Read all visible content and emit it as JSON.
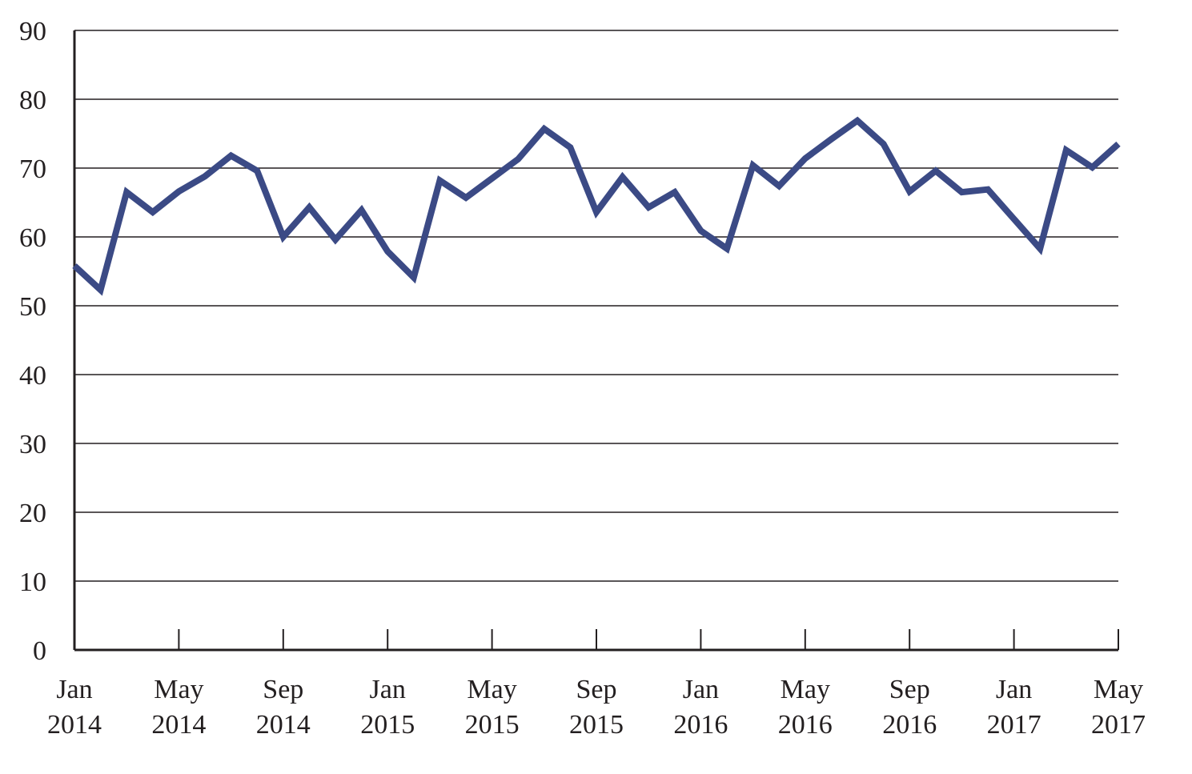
{
  "chart_data": {
    "type": "line",
    "title": "",
    "xlabel": "",
    "ylabel": "",
    "ylim": [
      0,
      90
    ],
    "yticks": [
      0,
      10,
      20,
      30,
      40,
      50,
      60,
      70,
      80,
      90
    ],
    "grid": true,
    "legend": "none",
    "line_color": "#3b4a85",
    "x_tick_labels": [
      {
        "month": "Jan",
        "year": "2014"
      },
      {
        "month": "May",
        "year": "2014"
      },
      {
        "month": "Sep",
        "year": "2014"
      },
      {
        "month": "Jan",
        "year": "2015"
      },
      {
        "month": "May",
        "year": "2015"
      },
      {
        "month": "Sep",
        "year": "2015"
      },
      {
        "month": "Jan",
        "year": "2016"
      },
      {
        "month": "May",
        "year": "2016"
      },
      {
        "month": "Sep",
        "year": "2016"
      },
      {
        "month": "Jan",
        "year": "2017"
      },
      {
        "month": "May",
        "year": "2017"
      }
    ],
    "x": [
      "2014-01",
      "2014-02",
      "2014-03",
      "2014-04",
      "2014-05",
      "2014-06",
      "2014-07",
      "2014-08",
      "2014-09",
      "2014-10",
      "2014-11",
      "2014-12",
      "2015-01",
      "2015-02",
      "2015-03",
      "2015-04",
      "2015-05",
      "2015-06",
      "2015-07",
      "2015-08",
      "2015-09",
      "2015-10",
      "2015-11",
      "2015-12",
      "2016-01",
      "2016-02",
      "2016-03",
      "2016-04",
      "2016-05",
      "2016-06",
      "2016-07",
      "2016-08",
      "2016-09",
      "2016-10",
      "2016-11",
      "2016-12",
      "2017-01",
      "2017-02",
      "2017-03",
      "2017-04",
      "2017-05"
    ],
    "series": [
      {
        "values": [
          55.8,
          52.3,
          66.5,
          63.6,
          66.6,
          68.8,
          71.8,
          69.6,
          60.0,
          64.3,
          59.6,
          63.9,
          57.9,
          54.1,
          68.2,
          65.7,
          68.5,
          71.3,
          75.7,
          73.0,
          63.6,
          68.7,
          64.3,
          66.5,
          60.9,
          58.3,
          70.4,
          67.4,
          71.4,
          74.2,
          76.9,
          73.5,
          66.6,
          69.6,
          66.5,
          66.9,
          62.6,
          58.3,
          72.6,
          70.1,
          73.5
        ]
      }
    ]
  }
}
